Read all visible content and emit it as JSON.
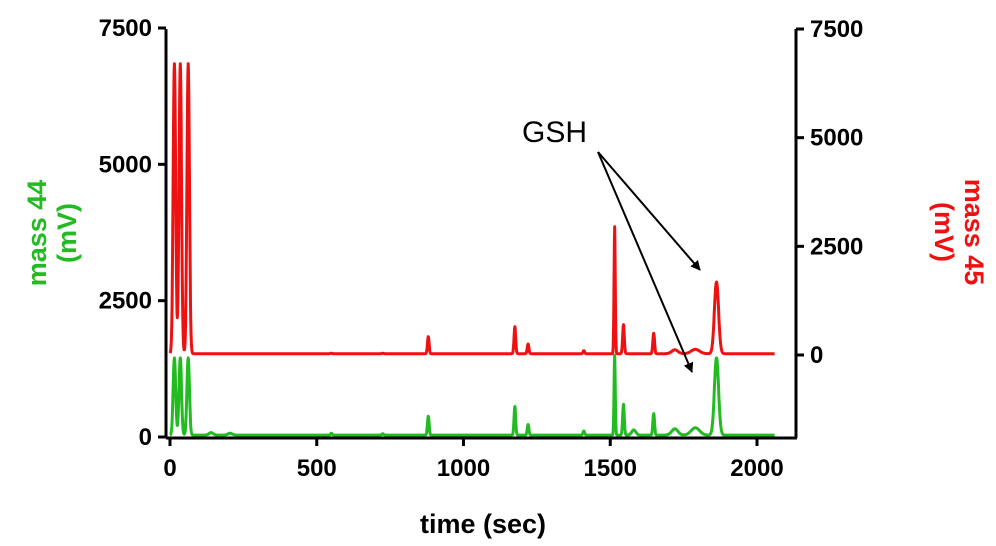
{
  "chart_data": {
    "type": "line",
    "xlabel": "time (sec)",
    "ylabel_left": [
      "mass 44",
      "(mV)"
    ],
    "ylabel_right": [
      "mass 45",
      "(mV)"
    ],
    "xlim": [
      0,
      2150
    ],
    "ylim_left": [
      0,
      7500
    ],
    "ylim_right": [
      -1650,
      7500
    ],
    "xticks": [
      0,
      500,
      1000,
      1500,
      2000
    ],
    "yticks_left": [
      0,
      2500,
      5000,
      7500
    ],
    "yticks_right": [
      0,
      2500,
      5000,
      7500
    ],
    "grid": false,
    "annotation": {
      "text": "GSH",
      "targets": [
        "mass 45 peak at ~1860 sec",
        "mass 44 peak at ~1860 sec"
      ]
    },
    "series": [
      {
        "name": "mass 44",
        "axis": "left",
        "color": "#22bb22",
        "baseline": 35,
        "x_end": 2060,
        "peaks": [
          {
            "x": 15,
            "y": 1450,
            "w": 6
          },
          {
            "x": 35,
            "y": 1450,
            "w": 6
          },
          {
            "x": 62,
            "y": 1450,
            "w": 6
          },
          {
            "x": 140,
            "y": 80,
            "w": 10
          },
          {
            "x": 205,
            "y": 70,
            "w": 10
          },
          {
            "x": 550,
            "y": 70,
            "w": 4
          },
          {
            "x": 725,
            "y": 60,
            "w": 4
          },
          {
            "x": 880,
            "y": 380,
            "w": 4
          },
          {
            "x": 1175,
            "y": 560,
            "w": 4
          },
          {
            "x": 1220,
            "y": 230,
            "w": 4
          },
          {
            "x": 1410,
            "y": 110,
            "w": 4
          },
          {
            "x": 1515,
            "y": 1500,
            "w": 3
          },
          {
            "x": 1545,
            "y": 600,
            "w": 4
          },
          {
            "x": 1580,
            "y": 130,
            "w": 10
          },
          {
            "x": 1648,
            "y": 430,
            "w": 4
          },
          {
            "x": 1720,
            "y": 150,
            "w": 15
          },
          {
            "x": 1790,
            "y": 170,
            "w": 20
          },
          {
            "x": 1862,
            "y": 1450,
            "w": 10
          }
        ]
      },
      {
        "name": "mass 45",
        "axis": "right",
        "color": "#ee1111",
        "baseline": 30,
        "x_end": 2060,
        "peaks": [
          {
            "x": 15,
            "y": 6700,
            "w": 6
          },
          {
            "x": 35,
            "y": 6700,
            "w": 6
          },
          {
            "x": 62,
            "y": 6700,
            "w": 6
          },
          {
            "x": 550,
            "y": 40,
            "w": 4
          },
          {
            "x": 725,
            "y": 40,
            "w": 4
          },
          {
            "x": 880,
            "y": 420,
            "w": 4
          },
          {
            "x": 1175,
            "y": 650,
            "w": 4
          },
          {
            "x": 1220,
            "y": 250,
            "w": 4
          },
          {
            "x": 1410,
            "y": 100,
            "w": 4
          },
          {
            "x": 1515,
            "y": 2950,
            "w": 3
          },
          {
            "x": 1545,
            "y": 700,
            "w": 4
          },
          {
            "x": 1648,
            "y": 500,
            "w": 4
          },
          {
            "x": 1720,
            "y": 120,
            "w": 15
          },
          {
            "x": 1790,
            "y": 130,
            "w": 20
          },
          {
            "x": 1862,
            "y": 1680,
            "w": 10
          }
        ]
      }
    ]
  }
}
